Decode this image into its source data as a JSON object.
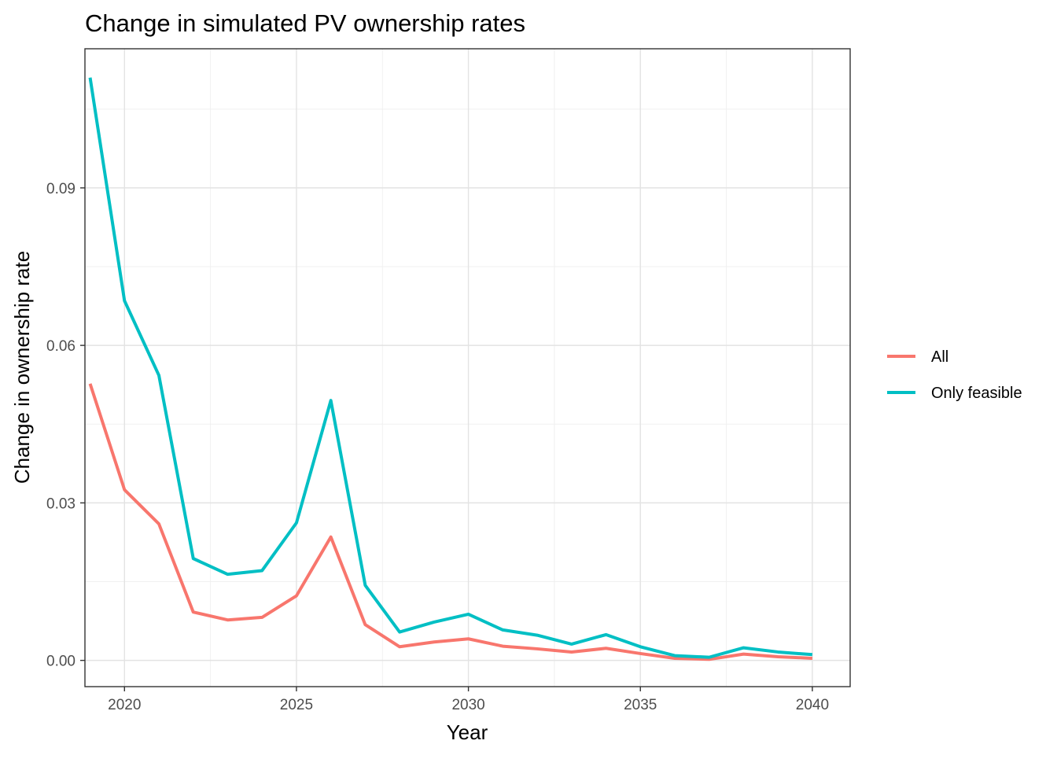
{
  "chart_data": {
    "type": "line",
    "title": "Change in simulated PV ownership rates",
    "xlabel": "Year",
    "ylabel": "Change in ownership rate",
    "x": [
      2019,
      2020,
      2021,
      2022,
      2023,
      2024,
      2025,
      2026,
      2027,
      2028,
      2029,
      2030,
      2031,
      2032,
      2033,
      2034,
      2035,
      2036,
      2037,
      2038,
      2039,
      2040
    ],
    "series": [
      {
        "name": "All",
        "color": "#F8766D",
        "values": [
          0.0527,
          0.0325,
          0.026,
          0.0092,
          0.0077,
          0.0082,
          0.0123,
          0.0235,
          0.0068,
          0.0026,
          0.0035,
          0.0041,
          0.0027,
          0.0022,
          0.0016,
          0.0023,
          0.0013,
          0.0004,
          0.0002,
          0.0012,
          0.0007,
          0.0004
        ]
      },
      {
        "name": "Only feasible",
        "color": "#00BFC4",
        "values": [
          0.111,
          0.0685,
          0.0543,
          0.0194,
          0.0164,
          0.0171,
          0.0262,
          0.0495,
          0.0143,
          0.0054,
          0.0073,
          0.0088,
          0.0058,
          0.0048,
          0.0031,
          0.0049,
          0.0026,
          0.0009,
          0.0006,
          0.0024,
          0.0016,
          0.0011
        ]
      }
    ],
    "xlim": [
      2018.85,
      2041.1
    ],
    "ylim": [
      -0.005,
      0.1165
    ],
    "x_ticks": [
      2020,
      2025,
      2030,
      2035,
      2040
    ],
    "x_tick_labels": [
      "2020",
      "2025",
      "2030",
      "2035",
      "2040"
    ],
    "y_ticks": [
      0,
      0.03,
      0.06,
      0.09
    ],
    "y_tick_labels": [
      "0.00",
      "0.03",
      "0.06",
      "0.09"
    ],
    "grid": true,
    "legend_position": "right"
  }
}
